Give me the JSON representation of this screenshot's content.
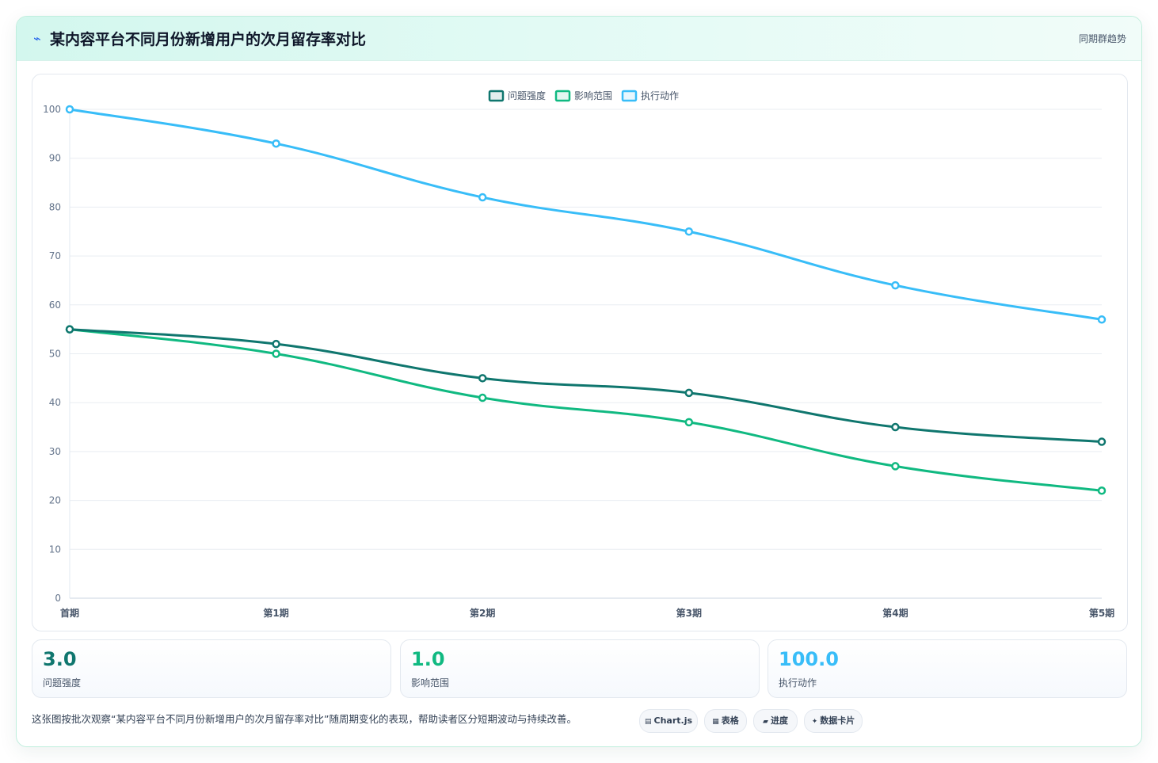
{
  "header": {
    "icon": "lightning-icon",
    "title": "某内容平台不同月份新增用户的次月留存率对比",
    "tag": "同期群趋势"
  },
  "chart_data": {
    "type": "line",
    "categories": [
      "首期",
      "第1期",
      "第2期",
      "第3期",
      "第4期",
      "第5期"
    ],
    "series": [
      {
        "name": "问题强度",
        "color": "#0f766e",
        "values": [
          55,
          52,
          45,
          42,
          35,
          32
        ]
      },
      {
        "name": "影响范围",
        "color": "#10b981",
        "values": [
          55,
          50,
          41,
          36,
          27,
          22
        ]
      },
      {
        "name": "执行动作",
        "color": "#38bdf8",
        "values": [
          100,
          93,
          82,
          75,
          64,
          57
        ]
      }
    ],
    "ylim": [
      0,
      100
    ],
    "yticks": [
      0,
      10,
      20,
      30,
      40,
      50,
      60,
      70,
      80,
      90,
      100
    ],
    "legend": "top-center",
    "grid": true
  },
  "stats": [
    {
      "value": "3.0",
      "label": "问题强度",
      "color": "#0f766e"
    },
    {
      "value": "1.0",
      "label": "影响范围",
      "color": "#10b981"
    },
    {
      "value": "100.0",
      "label": "执行动作",
      "color": "#38bdf8"
    }
  ],
  "footer": {
    "note": "这张图按批次观察“某内容平台不同月份新增用户的次月留存率对比”随周期变化的表现，帮助读者区分短期波动与持续改善。",
    "chips": [
      {
        "icon": "chart-icon",
        "glyph": "▤",
        "label": "Chart.js"
      },
      {
        "icon": "table-icon",
        "glyph": "▦",
        "label": "表格"
      },
      {
        "icon": "progress-icon",
        "glyph": "▰",
        "label": "进度"
      },
      {
        "icon": "sparkle-icon",
        "glyph": "✦",
        "label": "数据卡片"
      }
    ]
  }
}
